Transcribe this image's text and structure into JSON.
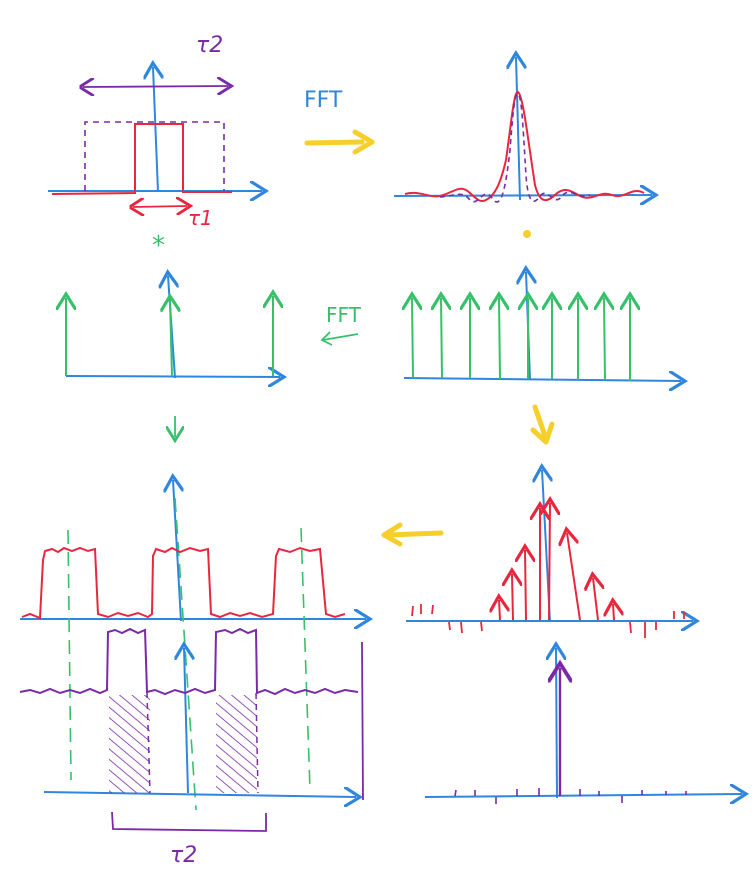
{
  "colors": {
    "blue": "#2f86dd",
    "red": "#e8273f",
    "purple": "#7a2aa6",
    "green": "#36c06a",
    "yellow": "#f7cf2a"
  },
  "labels": {
    "tau2_top": "τ2",
    "tau1": "τ1",
    "fft_top": "FFT",
    "convolve": "*",
    "multiply": "·",
    "fft_mid": "FFT",
    "tau2_bottom": "τ2"
  }
}
